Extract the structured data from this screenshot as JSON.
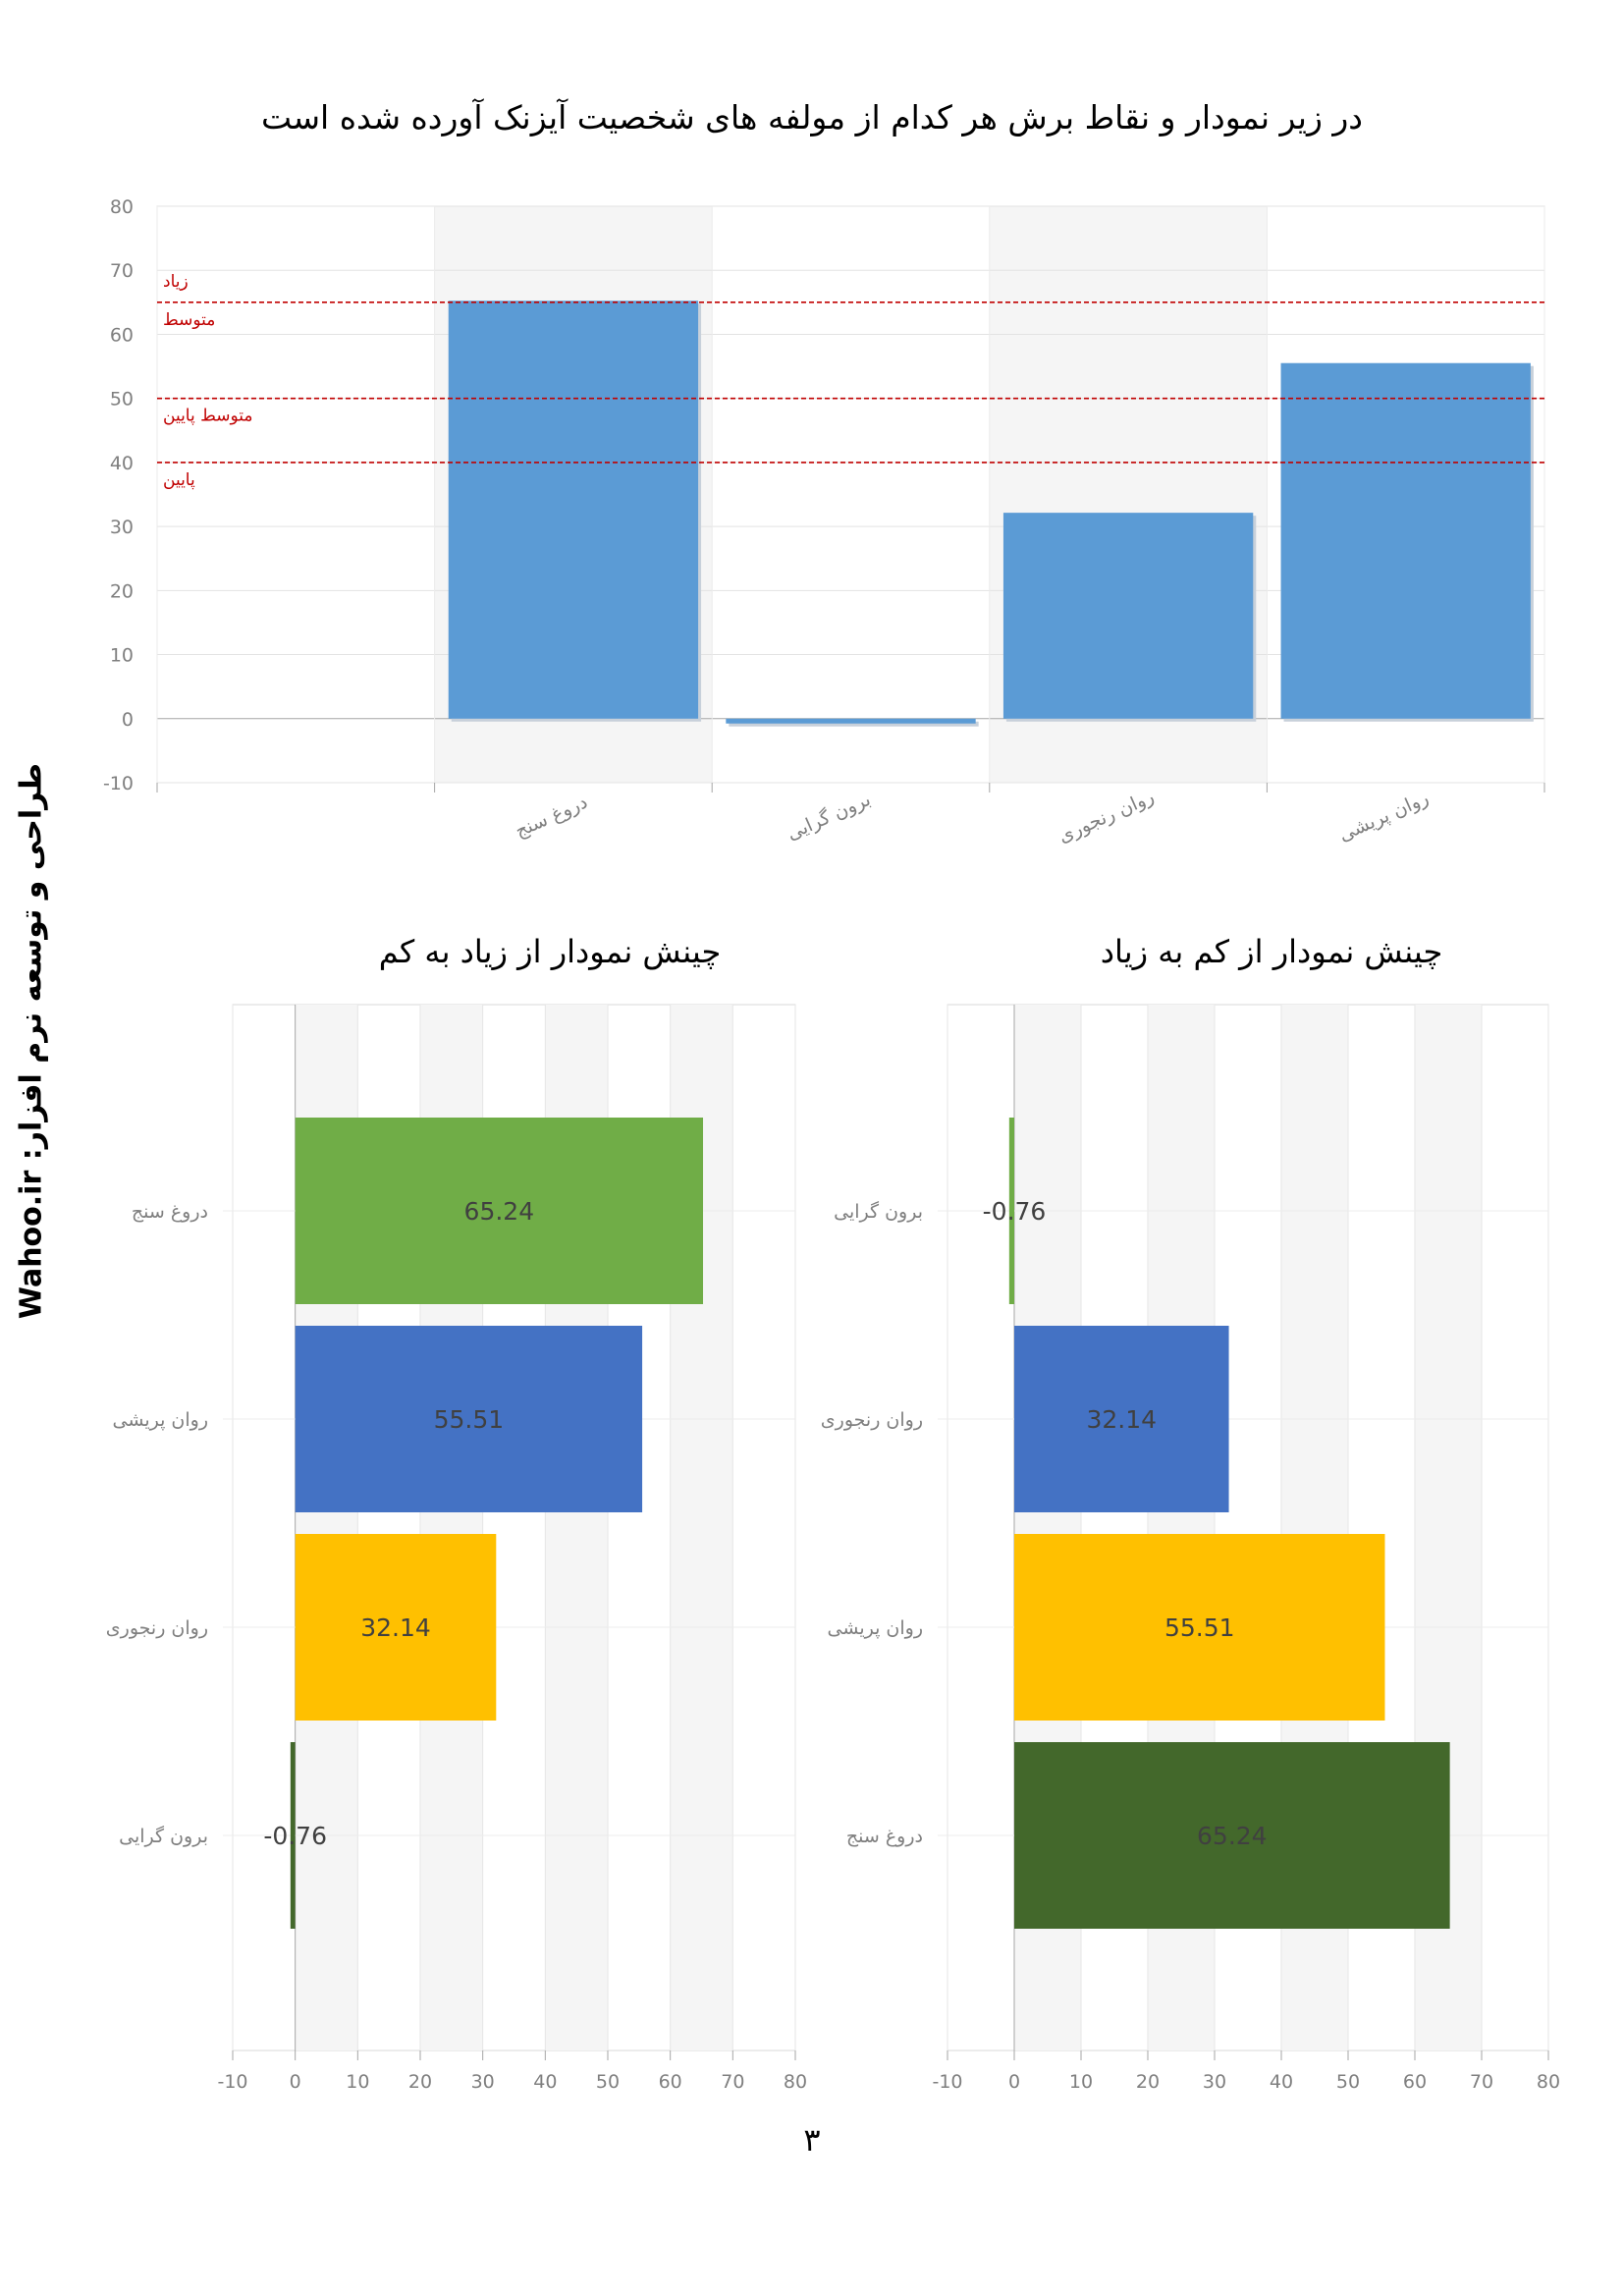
{
  "page": {
    "title": "در زیر نمودار و نقاط برش هر کدام از مولفه های شخصیت آیزنک آورده شده است",
    "side_text": "طراحی و توسعه نرم افزار:     Wahoo.ir",
    "page_number": "۳"
  },
  "chart_data": [
    {
      "type": "bar",
      "title": "",
      "categories": [
        "دروغ سنج",
        "برون گرایی",
        "روان رنجوری",
        "روان پریشی"
      ],
      "values": [
        65.24,
        -0.76,
        32.14,
        55.51
      ],
      "ylim": [
        -10,
        80
      ],
      "yticks": [
        -10,
        0,
        10,
        20,
        30,
        40,
        50,
        60,
        70,
        80
      ],
      "grid": true,
      "bar_color": "#5b9bd5",
      "reference_lines": [
        {
          "value": 65,
          "labels": [
            "زیاد",
            "متوسط"
          ]
        },
        {
          "value": 50,
          "labels": [
            "متوسط پایین"
          ]
        },
        {
          "value": 40,
          "labels": [
            "پایین"
          ]
        }
      ],
      "reference_color": "#c00000"
    },
    {
      "type": "bar",
      "orientation": "horizontal",
      "title": "چینش نمودار از زیاد به کم",
      "categories": [
        "دروغ سنج",
        "روان پریشی",
        "روان رنجوری",
        "برون گرایی"
      ],
      "values": [
        65.24,
        55.51,
        32.14,
        -0.76
      ],
      "labels": [
        "65.24",
        "55.51",
        "32.14",
        "-0.76"
      ],
      "colors": [
        "#70ad47",
        "#4472c4",
        "#ffc000",
        "#43682b"
      ],
      "xlim": [
        -10,
        80
      ],
      "xticks": [
        -10,
        0,
        10,
        20,
        30,
        40,
        50,
        60,
        70,
        80
      ]
    },
    {
      "type": "bar",
      "orientation": "horizontal",
      "title": "چینش نمودار از کم به زیاد",
      "categories": [
        "برون گرایی",
        "روان رنجوری",
        "روان پریشی",
        "دروغ سنج"
      ],
      "values": [
        -0.76,
        32.14,
        55.51,
        65.24
      ],
      "labels": [
        "-0.76",
        "32.14",
        "55.51",
        "65.24"
      ],
      "colors": [
        "#70ad47",
        "#4472c4",
        "#ffc000",
        "#43682b"
      ],
      "xlim": [
        -10,
        80
      ],
      "xticks": [
        -10,
        0,
        10,
        20,
        30,
        40,
        50,
        60,
        70,
        80
      ]
    }
  ]
}
